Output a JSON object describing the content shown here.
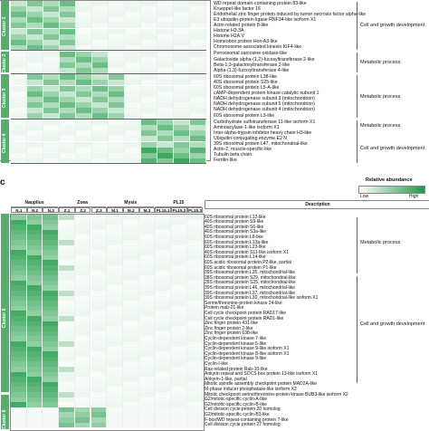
{
  "panel_top": {
    "clusters": [
      {
        "label": "Cluster 1",
        "rows": [
          "WD repeat domain-containing protein 83-like",
          "Krueppel-like factor 16",
          "Endothelial zinc finger protein induced by tumor necrosis factor alpha-like",
          "E3 ubiquitin-protein ligase RNF34-like isoform X1",
          "Actin-related protein 8-like",
          "Histone H3.3A",
          "Histone H2A.V",
          "Homeobox protein Hox-A3-like",
          "Chromosome-associated kinesin KIF4-like"
        ],
        "functions": [
          "Cell and growth development"
        ]
      },
      {
        "label": "Cluster 2",
        "rows": [
          "Peroxisomal sarcosine oxidase-like",
          "Galactoside alpha-(1,2)-fucosyltransferase 2-like",
          "Beta-1,3-galactosyltransferase 2-like",
          "Alpha-(1,3)-fucosyltransferase 4-like"
        ],
        "functions": [
          "Metabolic process"
        ]
      },
      {
        "label": "Cluster 3",
        "rows": [
          "60S ribosomal protein L38-like",
          "40S ribosomal protein S25-like",
          "60S ribosomal protein L5-A-like",
          "cAMP-dependent protein kinase catalytic subunit 1",
          "NADH dehydrogenase subunit 3 (mitochondrion)",
          "NADH dehydrogenase subunit 5 (mitochondrion)",
          "NADH dehydrogenase subunit 4 (mitochondrion)",
          "60S ribosomal protein L3-like"
        ],
        "functions": [
          "Metabolic process"
        ]
      },
      {
        "label": "Cluster 4",
        "rows": [
          "Carbohydrate sulfotransferase 11-like isoform X1",
          "Aminoacylase-1-like isoform X1",
          "Inter-alpha-trypsin inhibitor heavy chain H3-like",
          "Ubiquitin-conjugating enzyme E2 N",
          "39S ribosomal protein L47, mitochondrial-like",
          "Actin-2, muscle-specific-like",
          "Tubulin beta chain",
          "Ferritin-like"
        ],
        "functions": [
          "Metabolic process",
          "Cell and growth development"
        ]
      }
    ]
  },
  "panel_bottom": {
    "letter": "c",
    "groups": [
      {
        "name": "Nauplius",
        "cols": [
          "N.1",
          "N.2",
          "N.3"
        ]
      },
      {
        "name": "Zoea",
        "cols": [
          "Z.1",
          "Z.2",
          "Z.3"
        ]
      },
      {
        "name": "Mysis",
        "cols": [
          "M.1",
          "M.2",
          "M.3"
        ]
      },
      {
        "name": "PL15",
        "cols": [
          "PL15.1",
          "PL15.2",
          "PL15.3"
        ]
      }
    ],
    "description_header": "Description",
    "legend": {
      "title": "Relative abundance",
      "low": "Low",
      "high": "High"
    },
    "cluster5_label": "Cluster 5",
    "cluster6_label": "Cluster 6",
    "rows": [
      "60S ribosomal protein L12-like",
      "40S ribosomal protein S9-like",
      "40S ribosomal protein S6-like",
      "40S ribosomal protein S3a-like",
      "60S ribosomal protein L8-like",
      "60S ribosomal protein L13a-like",
      "60S ribosomal protein L23-like",
      "40S ribosomal protein S11-like isoform X1",
      "60S ribosomal protein L14-like",
      "60S acidic ribosomal protein P2-like, partial",
      "60S acidic ribosomal protein P1-like",
      "39S ribosomal protein L35, mitochondrial-like",
      "28S ribosomal protein S29, mitochondrial-like",
      "28S ribosomal protein S25, mitochondrial-like",
      "39S ribosomal protein L46, mitochondrial-like",
      "39S ribosomal protein L37, mitochondrial-like",
      "39S ribosomal protein L30, mitochondrial-like isoform X1",
      "Serine/threonine-protein kinase 24-like",
      "Protein mab-21-like",
      "Cell cycle checkpoint protein RAD17-like",
      "Cell cycle checkpoint protein RAD1-like",
      "Zinc finger protein 431-like",
      "Zinc finger protein 2-like",
      "Zinc finger protein 638-like",
      "Cyclin-dependent kinase 7-like",
      "Cyclin-dependent kinase 5-like",
      "Cyclin-dependent kinase 9-like isoform X1",
      "Cyclin-dependent kinase 8-like isoform X1",
      "Cyclin-dependent kinase 9-like",
      "Cyclin-I-like",
      "Ras-related protein Rab-10-like",
      "Ankyrin repeat and SOCS box protein 13-like isoform X1",
      "Ankyrin-1-like, partial",
      "Mitotic spindle assembly checkpoint protein MAD2A-like",
      "M-phase inducer phosphatase-like isoform X2",
      "Mitotic checkpoint serine/threonine-protein kinase BUB3-like isoform X2",
      "G2/mitotic-specific cyclin-A-like",
      "G2/mitotic-specific cyclin-B-like",
      "Cell division cycle protein 20 homolog",
      "G2/mitotic-specific cyclin-B3-like",
      "F-box/WD repeat-containing protein 7-like",
      "Cell division cycle protein 27 homolog"
    ],
    "functions": [
      "Metabolic process",
      "Cell and growth development"
    ]
  }
}
